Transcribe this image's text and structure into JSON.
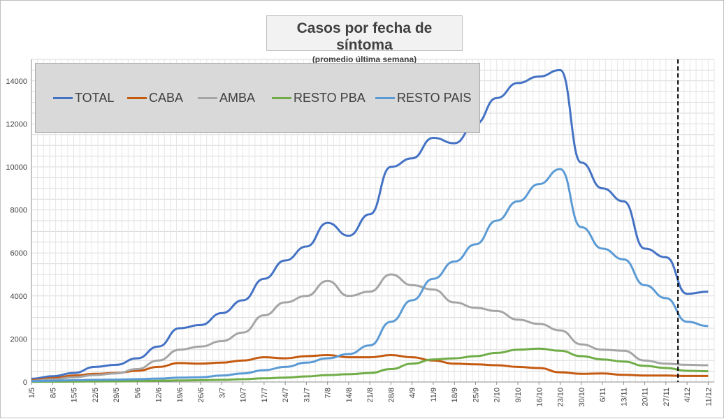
{
  "title": "Casos por fecha de síntoma",
  "subtitle": "(promedio última semana)",
  "chart_data": {
    "type": "line",
    "x": [
      "1/5",
      "8/5",
      "15/5",
      "22/5",
      "29/5",
      "5/6",
      "12/6",
      "19/6",
      "26/6",
      "3/7",
      "10/7",
      "17/7",
      "24/7",
      "31/7",
      "7/8",
      "14/8",
      "21/8",
      "28/8",
      "4/9",
      "11/9",
      "18/9",
      "25/9",
      "2/10",
      "9/10",
      "16/10",
      "23/10",
      "30/10",
      "6/11",
      "13/11",
      "20/11",
      "27/11",
      "4/12",
      "11/12"
    ],
    "x_end": "13/12",
    "ylim": [
      0,
      15000
    ],
    "yticks": [
      0,
      2000,
      4000,
      6000,
      8000,
      10000,
      12000,
      14000
    ],
    "grid": true,
    "legend_position": "top-left",
    "marker_line_date": "1/12",
    "series": [
      {
        "name": "TOTAL",
        "color": "#4472c4",
        "values": [
          150,
          270,
          420,
          700,
          800,
          1100,
          1650,
          2500,
          2650,
          3200,
          3800,
          4800,
          5650,
          6300,
          7400,
          6800,
          7800,
          10000,
          10400,
          11350,
          11100,
          12000,
          13200,
          13900,
          14200,
          14500,
          10200,
          9000,
          8400,
          6200,
          5800,
          4100,
          4200
        ]
      },
      {
        "name": "CABA",
        "color": "#c55a11",
        "values": [
          80,
          180,
          300,
          380,
          420,
          520,
          700,
          880,
          850,
          900,
          1000,
          1150,
          1100,
          1200,
          1250,
          1150,
          1150,
          1250,
          1150,
          1000,
          850,
          820,
          780,
          700,
          650,
          450,
          380,
          400,
          330,
          300,
          300,
          280,
          280
        ]
      },
      {
        "name": "AMBA",
        "color": "#a5a5a5",
        "values": [
          50,
          120,
          220,
          320,
          400,
          600,
          1000,
          1500,
          1650,
          1900,
          2300,
          3100,
          3700,
          4000,
          4700,
          4000,
          4200,
          5000,
          4500,
          4300,
          3700,
          3450,
          3300,
          2900,
          2700,
          2400,
          1750,
          1500,
          1450,
          1000,
          850,
          800,
          780
        ]
      },
      {
        "name": "RESTO PBA",
        "color": "#70ad47",
        "values": [
          10,
          15,
          20,
          25,
          30,
          40,
          55,
          70,
          85,
          100,
          130,
          170,
          200,
          260,
          320,
          360,
          420,
          600,
          850,
          1050,
          1100,
          1200,
          1350,
          1500,
          1550,
          1450,
          1200,
          1050,
          950,
          750,
          650,
          520,
          500
        ]
      },
      {
        "name": "RESTO PAIS",
        "color": "#5b9bd5",
        "values": [
          40,
          60,
          80,
          100,
          110,
          130,
          160,
          200,
          220,
          300,
          400,
          550,
          700,
          900,
          1100,
          1300,
          1700,
          2800,
          3800,
          4800,
          5600,
          6400,
          7500,
          8400,
          9200,
          9900,
          7200,
          6200,
          5700,
          4500,
          3900,
          2800,
          2600
        ]
      }
    ]
  }
}
